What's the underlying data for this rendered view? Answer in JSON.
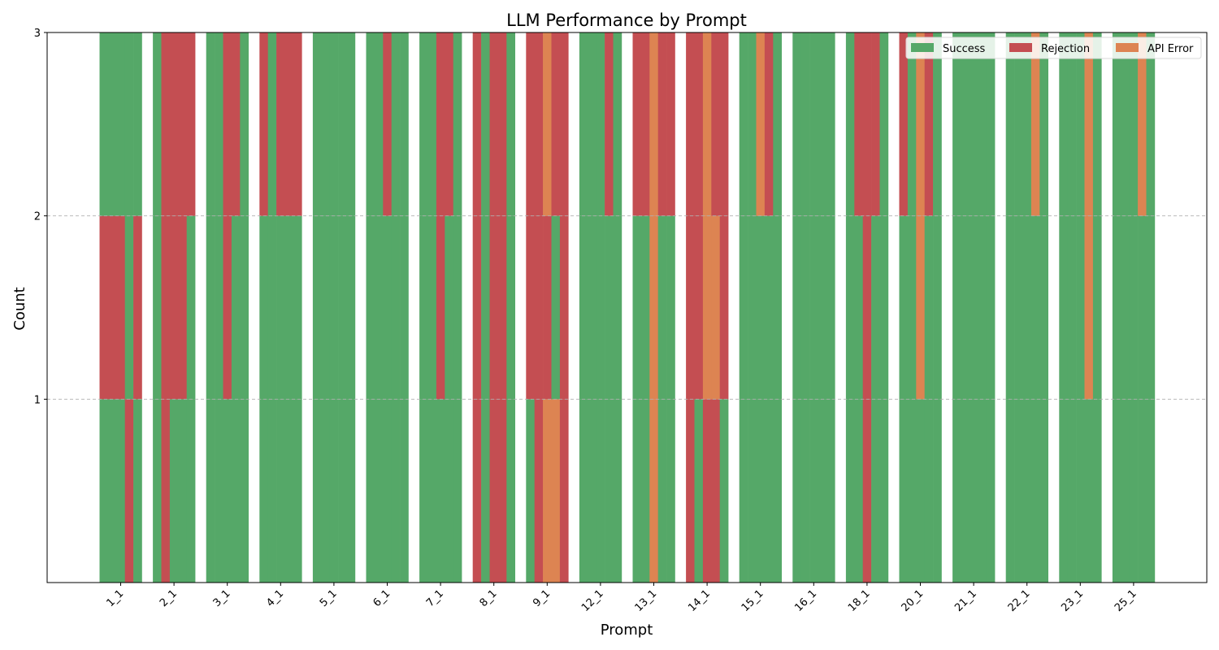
{
  "chart_data": {
    "type": "bar",
    "title": "LLM Performance by Prompt",
    "xlabel": "Prompt",
    "ylabel": "Count",
    "ylim": [
      0,
      3
    ],
    "yticks": [
      1,
      2,
      3
    ],
    "grid": "y-dashed",
    "legend_placement": "top-right",
    "categories": [
      "1_1",
      "2_1",
      "3_1",
      "4_1",
      "5_1",
      "6_1",
      "7_1",
      "8_1",
      "9_1",
      "12_1",
      "13_1",
      "14_1",
      "15_1",
      "16_1",
      "18_1",
      "20_1",
      "21_1",
      "22_1",
      "23_1",
      "25_1"
    ],
    "legend": [
      {
        "name": "Success",
        "color": "#55a868"
      },
      {
        "name": "Rejection",
        "color": "#c44e52"
      },
      {
        "name": "API Error",
        "color": "#dd8452"
      }
    ],
    "models": 5,
    "runs": [
      [
        "SSSRS",
        "RRRSR",
        "SSSSS"
      ],
      [
        "SRSSS",
        "SRRRS",
        "SRRRR"
      ],
      [
        "SSSSS",
        "SSRSS",
        "SSRRS"
      ],
      [
        "SSSSS",
        "SSSSS",
        "RSRRR"
      ],
      [
        "SSSSS",
        "SSSSS",
        "SSSSS"
      ],
      [
        "SSSSS",
        "SSSSS",
        "SSRSS"
      ],
      [
        "SSSSS",
        "SSRSS",
        "SSRRS"
      ],
      [
        "RSRRS",
        "RSRRS",
        "RSRRS"
      ],
      [
        "SREER",
        "RRRSR",
        "RRERR"
      ],
      [
        "SSSSS",
        "SSSSS",
        "SSSRS"
      ],
      [
        "SSESS",
        "SSESS",
        "RRERR"
      ],
      [
        "RSRRS",
        "RREER",
        "RRERR"
      ],
      [
        "SSSSS",
        "SSSSS",
        "SSERS"
      ],
      [
        "SSSSS",
        "SSSSS",
        "SSSSS"
      ],
      [
        "SSRSS",
        "SSRSS",
        "SRRRS"
      ],
      [
        "SSSSS",
        "SSESS",
        "RSERS"
      ],
      [
        "SSSSS",
        "SSSSS",
        "SSSSS"
      ],
      [
        "SSSSS",
        "SSSSS",
        "SSSES"
      ],
      [
        "SSSSS",
        "SSSES",
        "SSSES"
      ],
      [
        "SSSSS",
        "SSSSS",
        "SSSES"
      ]
    ]
  }
}
